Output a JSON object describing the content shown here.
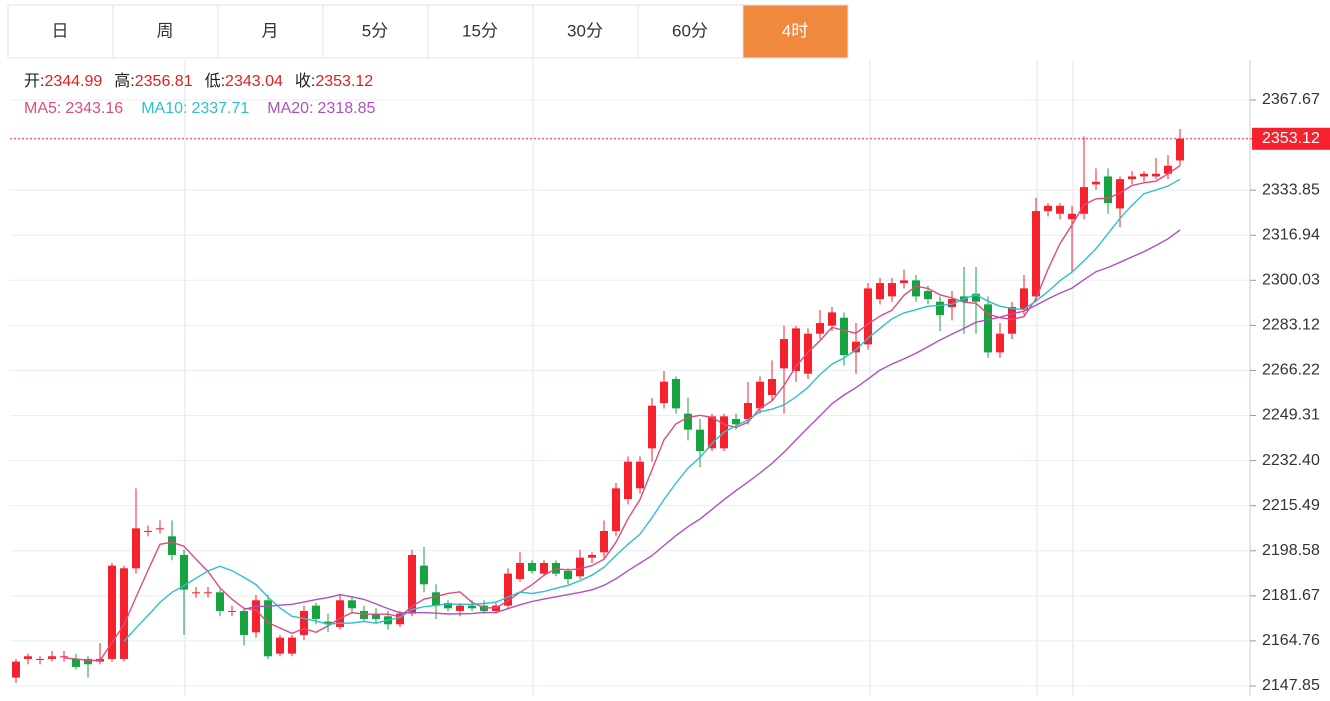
{
  "tabs": {
    "items": [
      "日",
      "周",
      "月",
      "5分",
      "15分",
      "30分",
      "60分",
      "4时"
    ],
    "active": 7
  },
  "quote": {
    "open_label": "开:",
    "open": 2344.99,
    "high_label": "高:",
    "high": 2356.81,
    "low_label": "低:",
    "low": 2343.04,
    "close_label": "收:",
    "close": 2353.12
  },
  "ma": [
    {
      "name": "MA5:",
      "value": 2343.16,
      "period": 5,
      "color": "#e04a80"
    },
    {
      "name": "MA10:",
      "value": 2337.71,
      "period": 10,
      "color": "#2fbfd0"
    },
    {
      "name": "MA20:",
      "value": 2318.85,
      "period": 20,
      "color": "#b050c0"
    }
  ],
  "chart_data": {
    "type": "candlestick",
    "up_color": "#f5222d",
    "down_color": "#16a340",
    "last_price": 2353.12,
    "ylim": [
      2144.1,
      2382.67
    ],
    "yticks": [
      2367.67,
      2333.85,
      2316.94,
      2300.03,
      2283.12,
      2266.22,
      2249.31,
      {
        "value": 2232.4,
        "label": "2232.40"
      },
      2215.49,
      2198.58,
      2181.67,
      2164.76,
      2147.85
    ],
    "candles": [
      [
        2151,
        2158,
        2149,
        2157
      ],
      [
        2158,
        2160,
        2156,
        2159
      ],
      [
        2158,
        2159,
        2156,
        2158
      ],
      [
        2158,
        2161,
        2157,
        2159
      ],
      [
        2159,
        2161,
        2157,
        2159
      ],
      [
        2158,
        2160,
        2154,
        2155
      ],
      [
        2158,
        2159,
        2151,
        2156
      ],
      [
        2157,
        2164,
        2156,
        2158
      ],
      [
        2158,
        2194,
        2157,
        2193
      ],
      [
        2158,
        2193,
        2157,
        2192
      ],
      [
        2192,
        2222,
        2190,
        2207
      ],
      [
        2206,
        2208,
        2204,
        2206
      ],
      [
        2207,
        2210,
        2205,
        2207
      ],
      [
        2204,
        2210,
        2195,
        2197
      ],
      [
        2197,
        2199,
        2167,
        2184
      ],
      [
        2183,
        2185,
        2181,
        2183
      ],
      [
        2183,
        2185,
        2181,
        2183
      ],
      [
        2183,
        2184,
        2174,
        2176
      ],
      [
        2176,
        2178,
        2174,
        2176
      ],
      [
        2176,
        2177,
        2163,
        2167
      ],
      [
        2168,
        2182,
        2166,
        2180
      ],
      [
        2180,
        2182,
        2158,
        2159
      ],
      [
        2160,
        2167,
        2159,
        2166
      ],
      [
        2160,
        2167,
        2159,
        2166
      ],
      [
        2167,
        2178,
        2165,
        2176
      ],
      [
        2178,
        2179,
        2171,
        2173
      ],
      [
        2172,
        2175,
        2168,
        2171
      ],
      [
        2170,
        2182,
        2169,
        2180
      ],
      [
        2180,
        2181,
        2175,
        2177
      ],
      [
        2176,
        2178,
        2172,
        2173
      ],
      [
        2175,
        2177,
        2171,
        2173
      ],
      [
        2174,
        2176,
        2169,
        2171
      ],
      [
        2171,
        2176,
        2170,
        2175
      ],
      [
        2175,
        2199,
        2174,
        2197
      ],
      [
        2193,
        2200,
        2183,
        2186
      ],
      [
        2183,
        2186,
        2173,
        2178
      ],
      [
        2179,
        2180,
        2176,
        2177
      ],
      [
        2176,
        2179,
        2174,
        2178
      ],
      [
        2178,
        2180,
        2176,
        2177
      ],
      [
        2178,
        2180,
        2175,
        2176
      ],
      [
        2176,
        2179,
        2175,
        2178
      ],
      [
        2178,
        2192,
        2177,
        2190
      ],
      [
        2188,
        2198,
        2187,
        2194
      ],
      [
        2194,
        2195,
        2190,
        2191
      ],
      [
        2190,
        2195,
        2189,
        2194
      ],
      [
        2194,
        2195,
        2189,
        2190
      ],
      [
        2191,
        2192,
        2186,
        2188
      ],
      [
        2189,
        2199,
        2188,
        2196
      ],
      [
        2196,
        2198,
        2194,
        2197
      ],
      [
        2198,
        2210,
        2196,
        2206
      ],
      [
        2206,
        2224,
        2204,
        2222
      ],
      [
        2218,
        2234,
        2216,
        2232
      ],
      [
        2222,
        2234,
        2220,
        2232
      ],
      [
        2237,
        2256,
        2232,
        2253
      ],
      [
        2254,
        2266,
        2252,
        2262
      ],
      [
        2263,
        2264,
        2250,
        2252
      ],
      [
        2250,
        2256,
        2240,
        2244
      ],
      [
        2244,
        2248,
        2230,
        2236
      ],
      [
        2237,
        2250,
        2236,
        2249
      ],
      [
        2237,
        2250,
        2236,
        2249
      ],
      [
        2248,
        2250,
        2244,
        2246
      ],
      [
        2248,
        2262,
        2246,
        2254
      ],
      [
        2252,
        2264,
        2250,
        2262
      ],
      [
        2257,
        2270,
        2255,
        2263
      ],
      [
        2267,
        2283,
        2250,
        2278
      ],
      [
        2266,
        2283,
        2262,
        2282
      ],
      [
        2265,
        2282,
        2263,
        2280
      ],
      [
        2280,
        2289,
        2278,
        2284
      ],
      [
        2283,
        2290,
        2281,
        2288
      ],
      [
        2286,
        2288,
        2268,
        2272
      ],
      [
        2273,
        2284,
        2265,
        2277
      ],
      [
        2276,
        2299,
        2274,
        2297
      ],
      [
        2293,
        2301,
        2291,
        2299
      ],
      [
        2294,
        2301,
        2292,
        2299
      ],
      [
        2299,
        2304,
        2297,
        2300
      ],
      [
        2300,
        2302,
        2292,
        2294
      ],
      [
        2296,
        2298,
        2291,
        2293
      ],
      [
        2292,
        2294,
        2281,
        2287
      ],
      [
        2290,
        2296,
        2285,
        2293
      ],
      [
        2294,
        2305,
        2280,
        2292
      ],
      [
        2295,
        2305,
        2280,
        2292
      ],
      [
        2291,
        2294,
        2271,
        2273
      ],
      [
        2273,
        2284,
        2271,
        2280
      ],
      [
        2280,
        2292,
        2278,
        2290
      ],
      [
        2289,
        2302,
        2287,
        2297
      ],
      [
        2294,
        2331,
        2292,
        2326
      ],
      [
        2326,
        2329,
        2324,
        2328
      ],
      [
        2325,
        2329,
        2323,
        2328
      ],
      [
        2323,
        2328,
        2303,
        2325
      ],
      [
        2325,
        2354,
        2323,
        2335
      ],
      [
        2336,
        2342,
        2334,
        2337
      ],
      [
        2339,
        2342,
        2325,
        2329
      ],
      [
        2327,
        2339,
        2320,
        2338
      ],
      [
        2338,
        2341,
        2336,
        2339
      ],
      [
        2339,
        2341,
        2337,
        2340
      ],
      [
        2339,
        2346,
        2338,
        2340
      ],
      [
        2340,
        2347,
        2338,
        2343
      ],
      [
        2344.99,
        2356.81,
        2343.04,
        2353.12
      ]
    ]
  }
}
